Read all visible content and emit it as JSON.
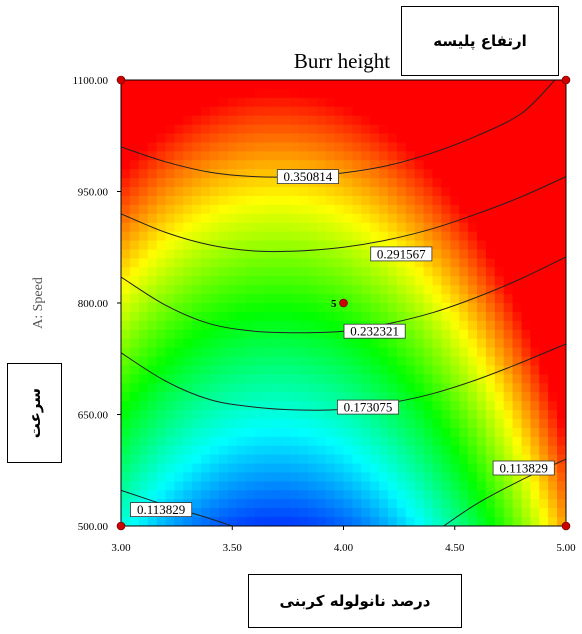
{
  "chart_data": {
    "type": "heatmap",
    "subtype": "contour",
    "title": "Burr height",
    "xlabel": "",
    "ylabel": "A: Speed",
    "xlim": [
      3.0,
      5.0
    ],
    "ylim": [
      500,
      1100
    ],
    "x_ticks": [
      "3.00",
      "3.50",
      "4.00",
      "4.50",
      "5.00"
    ],
    "y_ticks": [
      "500.00",
      "650.00",
      "800.00",
      "950.00",
      "1100.00"
    ],
    "contours": [
      {
        "level": 0.350814,
        "label": "0.350814",
        "points": [
          [
            3.0,
            1010
          ],
          [
            3.2,
            990
          ],
          [
            3.4,
            976
          ],
          [
            3.6,
            970
          ],
          [
            3.8,
            970
          ],
          [
            4.0,
            975
          ],
          [
            4.2,
            985
          ],
          [
            4.4,
            1002
          ],
          [
            4.6,
            1025
          ],
          [
            4.8,
            1055
          ],
          [
            4.95,
            1100
          ]
        ]
      },
      {
        "level": 0.291567,
        "label": "0.291567",
        "points": [
          [
            3.0,
            920
          ],
          [
            3.2,
            895
          ],
          [
            3.4,
            878
          ],
          [
            3.6,
            870
          ],
          [
            3.8,
            870
          ],
          [
            4.0,
            875
          ],
          [
            4.2,
            885
          ],
          [
            4.4,
            900
          ],
          [
            4.6,
            920
          ],
          [
            4.8,
            943
          ],
          [
            5.0,
            970
          ]
        ]
      },
      {
        "level": 0.232321,
        "label": "0.232321",
        "points": [
          [
            3.0,
            835
          ],
          [
            3.2,
            797
          ],
          [
            3.4,
            772
          ],
          [
            3.6,
            762
          ],
          [
            3.8,
            760
          ],
          [
            4.0,
            762
          ],
          [
            4.2,
            772
          ],
          [
            4.4,
            787
          ],
          [
            4.6,
            808
          ],
          [
            4.8,
            833
          ],
          [
            5.0,
            862
          ]
        ]
      },
      {
        "level": 0.173075,
        "label": "0.173075",
        "points": [
          [
            3.0,
            733
          ],
          [
            3.2,
            695
          ],
          [
            3.4,
            670
          ],
          [
            3.6,
            660
          ],
          [
            3.8,
            656
          ],
          [
            4.0,
            657
          ],
          [
            4.2,
            665
          ],
          [
            4.4,
            678
          ],
          [
            4.6,
            697
          ],
          [
            4.8,
            720
          ],
          [
            5.0,
            745
          ]
        ]
      },
      {
        "level": 0.113829,
        "label": "0.113829",
        "points": [
          [
            3.0,
            548
          ],
          [
            3.2,
            528
          ],
          [
            3.3,
            519
          ],
          [
            3.4,
            510
          ],
          [
            3.5,
            500
          ]
        ]
      },
      {
        "level": 0.113829,
        "label": "0.113829",
        "points": [
          [
            4.45,
            500
          ],
          [
            4.6,
            530
          ],
          [
            4.8,
            562
          ],
          [
            5.0,
            590
          ]
        ]
      }
    ],
    "labels": [
      {
        "text": "0.350814",
        "x": 3.84,
        "y": 970
      },
      {
        "text": "0.291567",
        "x": 4.26,
        "y": 866
      },
      {
        "text": "0.232321",
        "x": 4.14,
        "y": 762
      },
      {
        "text": "0.173075",
        "x": 4.11,
        "y": 660
      },
      {
        "text": "0.113829",
        "x": 3.18,
        "y": 522
      },
      {
        "text": "0.113829",
        "x": 4.81,
        "y": 578
      }
    ],
    "design_points": [
      {
        "x": 3.0,
        "y": 500
      },
      {
        "x": 3.0,
        "y": 1100
      },
      {
        "x": 5.0,
        "y": 500
      },
      {
        "x": 5.0,
        "y": 1100
      },
      {
        "x": 4.0,
        "y": 800,
        "label": "5"
      }
    ],
    "grid": false,
    "colors": {
      "high": "#ff0000",
      "low": "#0000ff",
      "design_point": "#cc0000"
    }
  },
  "annotations": {
    "title_fa": "ارتفاع پلیسه",
    "y_fa": "سرعت",
    "x_fa": "درصد نانولوله کربنی"
  }
}
